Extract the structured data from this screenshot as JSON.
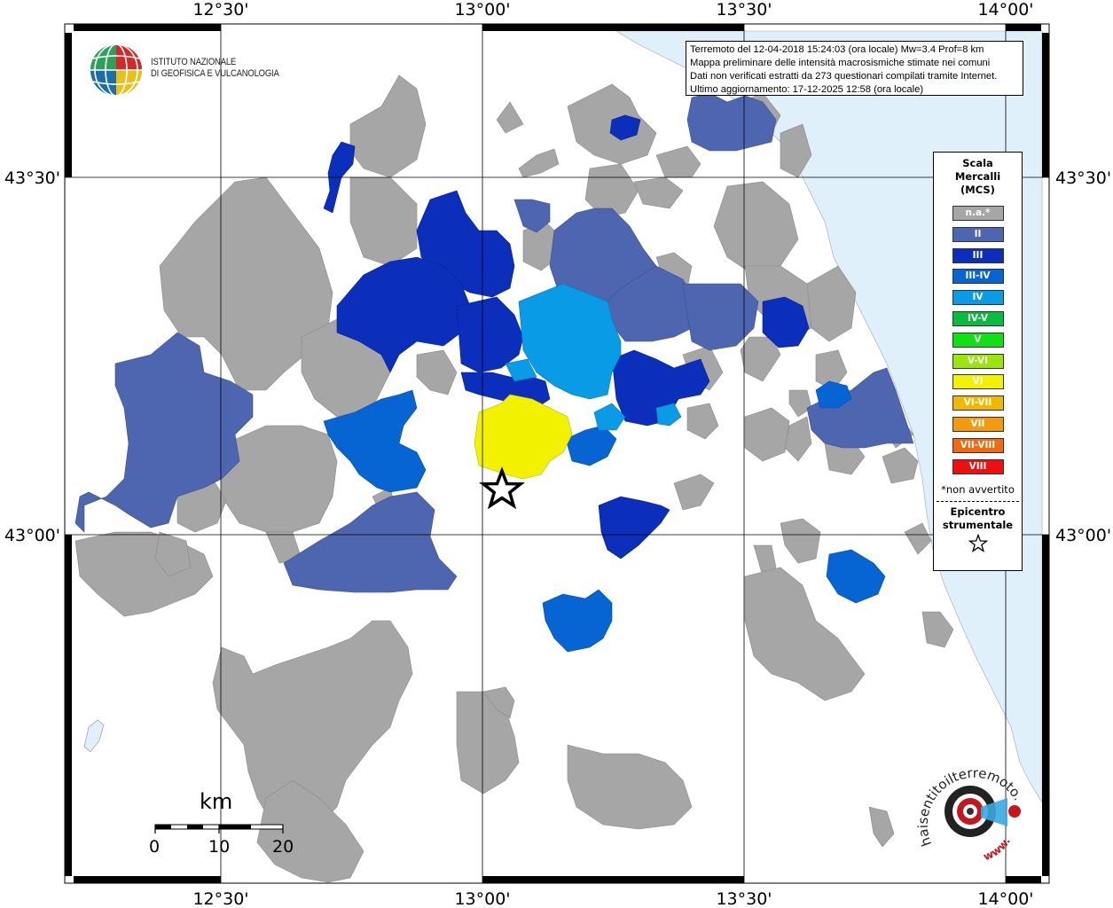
{
  "coords": {
    "lon_labels": [
      "12°30'",
      "13°00'",
      "13°30'",
      "14°00'"
    ],
    "lat_labels": [
      "43°30'",
      "43°00'"
    ]
  },
  "info": {
    "line1": "Terremoto del 12-04-2018 15:24:03 (ora locale) Mw=3.4 Prof=8 km",
    "line2": "Mappa preliminare delle intensità macrosismiche stimate nei comuni",
    "line3": "Dati non verificati estratti da 273 questionari compilati tramite Internet.",
    "line4": "Ultimo aggiornamento: 17-12-2025 12:58 (ora locale)"
  },
  "legend": {
    "title_line1": "Scala",
    "title_line2": "Mercalli",
    "title_line3": "(MCS)",
    "items": [
      {
        "label": "n.a.*",
        "color": "#a6a6a6"
      },
      {
        "label": "II",
        "color": "#4e66b0"
      },
      {
        "label": "III",
        "color": "#0b2fbb"
      },
      {
        "label": "III-IV",
        "color": "#0665d3"
      },
      {
        "label": "IV",
        "color": "#0a9be6"
      },
      {
        "label": "IV-V",
        "color": "#0bbb40"
      },
      {
        "label": "V",
        "color": "#10e015"
      },
      {
        "label": "V-VI",
        "color": "#9be60a"
      },
      {
        "label": "VI",
        "color": "#f2f200"
      },
      {
        "label": "VI-VII",
        "color": "#f2b800"
      },
      {
        "label": "VII",
        "color": "#f29a10"
      },
      {
        "label": "VII-VIII",
        "color": "#f26a10"
      },
      {
        "label": "VIII",
        "color": "#ee0f10"
      }
    ],
    "note": "*non avvertito",
    "epicenter_line1": "Epicentro",
    "epicenter_line2": "strumentale"
  },
  "logo": {
    "line1": "ISTITUTO NAZIONALE",
    "line2": "DI GEOFISICA E VULCANOLOGIA"
  },
  "scalebar": {
    "unit": "km",
    "ticks": [
      "0",
      "10",
      "20"
    ]
  },
  "hs_logo": {
    "text_top": "haisentitoilterremoto",
    "text_top_suffix": ".it",
    "text_bottom": "www."
  },
  "colors": {
    "sea": "#dff0fb",
    "na": "#a6a6a6",
    "ii": "#4e66b0",
    "iii": "#0b2fbb",
    "iii_iv": "#0665d3",
    "iv": "#0a9be6",
    "vi": "#f2f200"
  }
}
